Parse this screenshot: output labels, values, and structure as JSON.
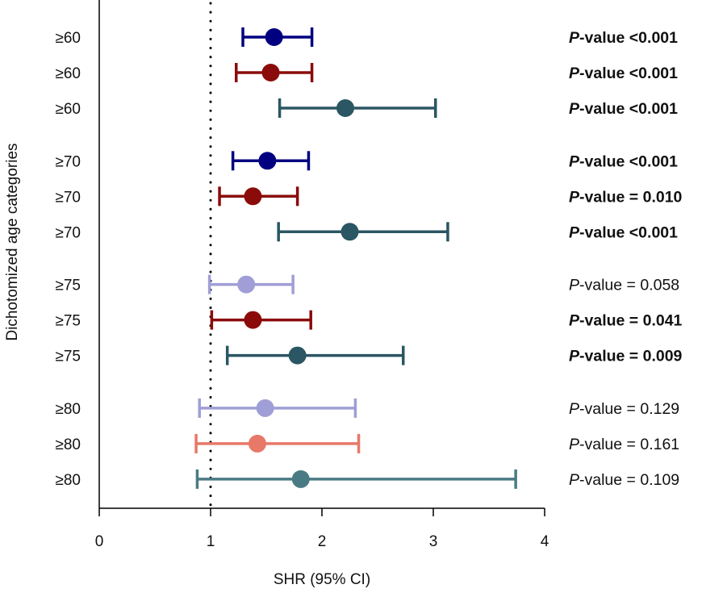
{
  "chart_data": {
    "type": "forest",
    "xlabel": "SHR (95% CI)",
    "ylabel": "Dichotomized age categories",
    "xlim": [
      0,
      4
    ],
    "xticks": [
      "0",
      "1",
      "2",
      "3",
      "4"
    ],
    "reference_line": 1,
    "p_prefix": "P",
    "grid": false,
    "rows": [
      {
        "label": "≥60",
        "est": 1.57,
        "lo": 1.29,
        "hi": 1.91,
        "color": "#000080",
        "p_label": "-value <0.001",
        "bold": true
      },
      {
        "label": "≥60",
        "est": 1.54,
        "lo": 1.23,
        "hi": 1.91,
        "color": "#8B0B0B",
        "p_label": "-value <0.001",
        "bold": true
      },
      {
        "label": "≥60",
        "est": 2.21,
        "lo": 1.62,
        "hi": 3.02,
        "color": "#2B5663",
        "p_label": "-value <0.001",
        "bold": true
      },
      {
        "label": "≥70",
        "est": 1.51,
        "lo": 1.2,
        "hi": 1.88,
        "color": "#000080",
        "p_label": "-value <0.001",
        "bold": true
      },
      {
        "label": "≥70",
        "est": 1.38,
        "lo": 1.08,
        "hi": 1.78,
        "color": "#8B0B0B",
        "p_label": "-value = 0.010",
        "bold": true
      },
      {
        "label": "≥70",
        "est": 2.25,
        "lo": 1.61,
        "hi": 3.13,
        "color": "#2B5663",
        "p_label": "-value <0.001",
        "bold": true
      },
      {
        "label": "≥75",
        "est": 1.32,
        "lo": 0.99,
        "hi": 1.74,
        "color": "#A09ED6",
        "p_label": "-value = 0.058",
        "bold": false
      },
      {
        "label": "≥75",
        "est": 1.38,
        "lo": 1.01,
        "hi": 1.9,
        "color": "#8B0B0B",
        "p_label": "-value = 0.041",
        "bold": true
      },
      {
        "label": "≥75",
        "est": 1.78,
        "lo": 1.15,
        "hi": 2.73,
        "color": "#2B5663",
        "p_label": "-value = 0.009",
        "bold": true
      },
      {
        "label": "≥80",
        "est": 1.49,
        "lo": 0.9,
        "hi": 2.3,
        "color": "#A09ED6",
        "p_label": "-value = 0.129",
        "bold": false
      },
      {
        "label": "≥80",
        "est": 1.42,
        "lo": 0.87,
        "hi": 2.33,
        "color": "#E87868",
        "p_label": "-value = 0.161",
        "bold": false
      },
      {
        "label": "≥80",
        "est": 1.81,
        "lo": 0.88,
        "hi": 3.74,
        "color": "#4A7B84",
        "p_label": "-value = 0.109",
        "bold": false
      }
    ]
  }
}
